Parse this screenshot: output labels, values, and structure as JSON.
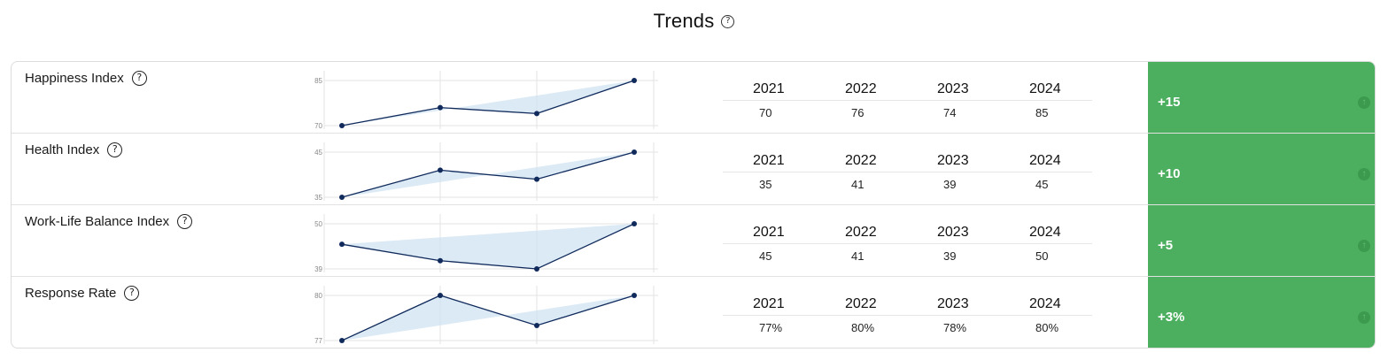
{
  "header": {
    "title": "Trends",
    "help_glyph": "?"
  },
  "years": [
    "2021",
    "2022",
    "2023",
    "2024"
  ],
  "rows": [
    {
      "label": "Happiness Index",
      "values": [
        "70",
        "76",
        "74",
        "85"
      ],
      "nums": [
        70,
        76,
        74,
        85
      ],
      "y_ticks": [
        "85",
        "70"
      ],
      "ylim": [
        70,
        85
      ],
      "change": "+15"
    },
    {
      "label": "Health Index",
      "values": [
        "35",
        "41",
        "39",
        "45"
      ],
      "nums": [
        35,
        41,
        39,
        45
      ],
      "y_ticks": [
        "45",
        "35"
      ],
      "ylim": [
        35,
        45
      ],
      "change": "+10"
    },
    {
      "label": "Work-Life Balance Index",
      "values": [
        "45",
        "41",
        "39",
        "50"
      ],
      "nums": [
        45,
        41,
        39,
        50
      ],
      "y_ticks": [
        "50",
        "39"
      ],
      "ylim": [
        39,
        50
      ],
      "change": "+5"
    },
    {
      "label": "Response Rate",
      "values": [
        "77%",
        "80%",
        "78%",
        "80%"
      ],
      "nums": [
        77,
        80,
        78,
        80
      ],
      "y_ticks": [
        "80",
        "77"
      ],
      "ylim": [
        77,
        80
      ],
      "change": "+3%"
    }
  ],
  "colors": {
    "line": "#102a5c",
    "band": "#cfe3f1",
    "positive": "#4caf5f"
  },
  "icons": {
    "help": "question-circle-icon",
    "change": "arrow-up-circle-icon"
  }
}
